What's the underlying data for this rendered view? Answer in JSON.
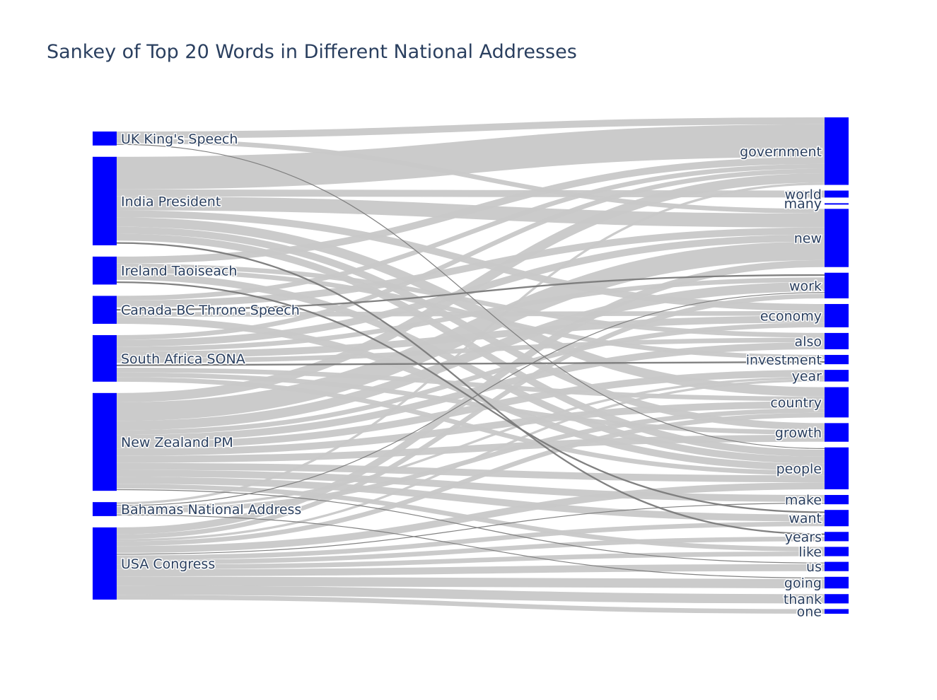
{
  "chart_data": {
    "type": "sankey",
    "title": "Sankey of Top 20 Words in Different National Addresses",
    "node_color": "#0000ff",
    "link_color": "#c8c8c8",
    "link_dark_color": "#7a7a7a",
    "sources": [
      "UK King's Speech",
      "India President",
      "Ireland Taoiseach",
      "Canada BC Throne Speech",
      "South Africa SONA",
      "New Zealand PM",
      "Bahamas National Address",
      "USA Congress"
    ],
    "targets": [
      "government",
      "world",
      "many",
      "new",
      "work",
      "economy",
      "also",
      "investment",
      "year",
      "country",
      "growth",
      "people",
      "make",
      "want",
      "years",
      "like",
      "us",
      "going",
      "thank",
      "one"
    ],
    "links": [
      {
        "source": "UK King's Speech",
        "target": "government",
        "value": 3
      },
      {
        "source": "UK King's Speech",
        "target": "new",
        "value": 2
      },
      {
        "source": "UK King's Speech",
        "target": "people",
        "value": 1
      },
      {
        "source": "India President",
        "target": "government",
        "value": 14
      },
      {
        "source": "India President",
        "target": "new",
        "value": 6
      },
      {
        "source": "India President",
        "target": "world",
        "value": 3
      },
      {
        "source": "India President",
        "target": "country",
        "value": 4
      },
      {
        "source": "India President",
        "target": "economy",
        "value": 3
      },
      {
        "source": "India President",
        "target": "people",
        "value": 3
      },
      {
        "source": "India President",
        "target": "years",
        "value": 2
      },
      {
        "source": "India President",
        "target": "growth",
        "value": 3
      },
      {
        "source": "Ireland Taoiseach",
        "target": "government",
        "value": 3
      },
      {
        "source": "Ireland Taoiseach",
        "target": "people",
        "value": 3
      },
      {
        "source": "Ireland Taoiseach",
        "target": "investment",
        "value": 2
      },
      {
        "source": "Ireland Taoiseach",
        "target": "want",
        "value": 2
      },
      {
        "source": "Ireland Taoiseach",
        "target": "also",
        "value": 2
      },
      {
        "source": "Canada BC Throne Speech",
        "target": "people",
        "value": 3
      },
      {
        "source": "Canada BC Throne Speech",
        "target": "new",
        "value": 3
      },
      {
        "source": "Canada BC Throne Speech",
        "target": "work",
        "value": 2
      },
      {
        "source": "Canada BC Throne Speech",
        "target": "government",
        "value": 2
      },
      {
        "source": "Canada BC Throne Speech",
        "target": "economy",
        "value": 2
      },
      {
        "source": "South Africa SONA",
        "target": "new",
        "value": 3
      },
      {
        "source": "South Africa SONA",
        "target": "government",
        "value": 2
      },
      {
        "source": "South Africa SONA",
        "target": "work",
        "value": 2
      },
      {
        "source": "South Africa SONA",
        "target": "economy",
        "value": 3
      },
      {
        "source": "South Africa SONA",
        "target": "investment",
        "value": 2
      },
      {
        "source": "South Africa SONA",
        "target": "country",
        "value": 2
      },
      {
        "source": "South Africa SONA",
        "target": "growth",
        "value": 2
      },
      {
        "source": "South Africa SONA",
        "target": "people",
        "value": 2
      },
      {
        "source": "South Africa SONA",
        "target": "also",
        "value": 2
      },
      {
        "source": "New Zealand PM",
        "target": "new",
        "value": 8
      },
      {
        "source": "New Zealand PM",
        "target": "government",
        "value": 4
      },
      {
        "source": "New Zealand PM",
        "target": "work",
        "value": 4
      },
      {
        "source": "New Zealand PM",
        "target": "also",
        "value": 3
      },
      {
        "source": "New Zealand PM",
        "target": "year",
        "value": 3
      },
      {
        "source": "New Zealand PM",
        "target": "country",
        "value": 3
      },
      {
        "source": "New Zealand PM",
        "target": "growth",
        "value": 3
      },
      {
        "source": "New Zealand PM",
        "target": "people",
        "value": 3
      },
      {
        "source": "New Zealand PM",
        "target": "make",
        "value": 3
      },
      {
        "source": "New Zealand PM",
        "target": "want",
        "value": 3
      },
      {
        "source": "New Zealand PM",
        "target": "economy",
        "value": 2
      },
      {
        "source": "New Zealand PM",
        "target": "like",
        "value": 2
      },
      {
        "source": "New Zealand PM",
        "target": "us",
        "value": 1
      },
      {
        "source": "Bahamas National Address",
        "target": "country",
        "value": 2
      },
      {
        "source": "Bahamas National Address",
        "target": "government",
        "value": 1
      },
      {
        "source": "Bahamas National Address",
        "target": "work",
        "value": 1
      },
      {
        "source": "Bahamas National Address",
        "target": "going",
        "value": 1
      },
      {
        "source": "Bahamas National Address",
        "target": "year",
        "value": 1
      },
      {
        "source": "USA Congress",
        "target": "new",
        "value": 3
      },
      {
        "source": "USA Congress",
        "target": "work",
        "value": 2
      },
      {
        "source": "USA Congress",
        "target": "country",
        "value": 2
      },
      {
        "source": "USA Congress",
        "target": "people",
        "value": 3
      },
      {
        "source": "USA Congress",
        "target": "want",
        "value": 2
      },
      {
        "source": "USA Congress",
        "target": "years",
        "value": 2
      },
      {
        "source": "USA Congress",
        "target": "like",
        "value": 2
      },
      {
        "source": "USA Congress",
        "target": "us",
        "value": 3
      },
      {
        "source": "USA Congress",
        "target": "going",
        "value": 4
      },
      {
        "source": "USA Congress",
        "target": "thank",
        "value": 4
      },
      {
        "source": "USA Congress",
        "target": "one",
        "value": 2
      },
      {
        "source": "USA Congress",
        "target": "make",
        "value": 1
      },
      {
        "source": "USA Congress",
        "target": "year",
        "value": 1
      }
    ],
    "highlighted_links": [
      [
        "UK King's Speech",
        "people"
      ],
      [
        "Ireland Taoiseach",
        "want"
      ],
      [
        "New Zealand PM",
        "us"
      ],
      [
        "Bahamas National Address",
        "going"
      ],
      [
        "USA Congress",
        "make"
      ],
      [
        "Canada BC Throne Speech",
        "work"
      ],
      [
        "Bahamas National Address",
        "work"
      ],
      [
        "India President",
        "years"
      ],
      [
        "South Africa SONA",
        "investment"
      ]
    ]
  }
}
